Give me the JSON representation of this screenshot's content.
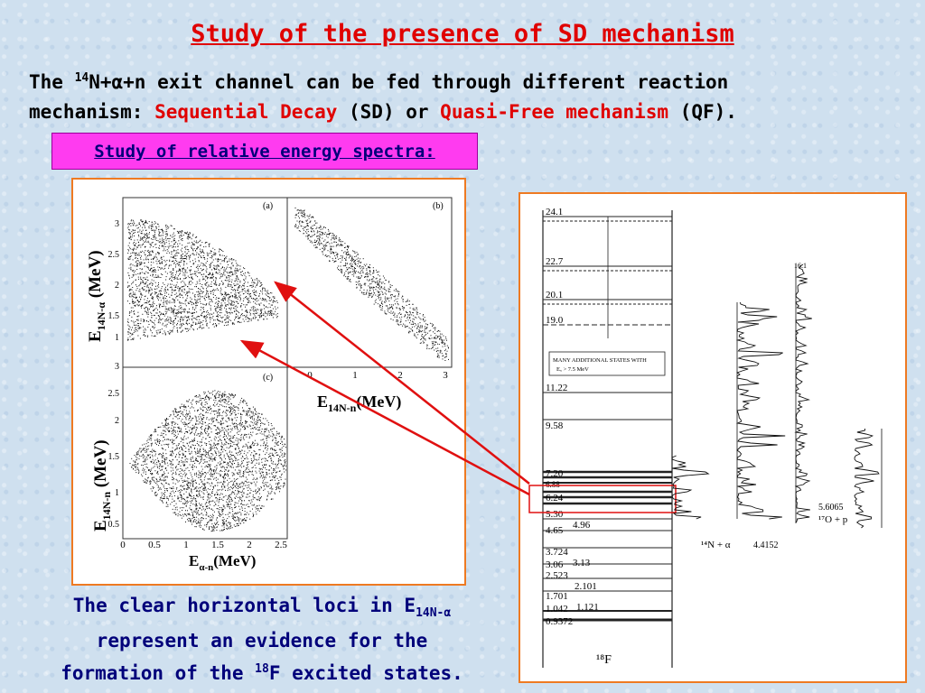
{
  "title": "Study of the presence of SD mechanism",
  "intro": {
    "line1_pre": "The ",
    "line1_sup": "14",
    "line1_post": "N+α+n exit channel can be fed through different reaction",
    "line2_pre": "mechanism: ",
    "sd": "Sequential Decay",
    "sd_abbr": " (SD) ",
    "or": "or ",
    "qf": "Quasi-Free mechanism",
    "qf_abbr": " (QF)."
  },
  "subtitle_box": "Study of relative energy spectra:",
  "plots": {
    "panel_a": "(a)",
    "panel_b": "(b)",
    "panel_c": "(c)",
    "y_label_top_main": "E",
    "y_label_top_sub": "14N-α",
    "y_label_top_unit": " (MeV)",
    "y_label_bottom_main": "E",
    "y_label_bottom_sub": "14N-n",
    "y_label_bottom_unit": " (MeV)",
    "x_label_b_main": "E",
    "x_label_b_sub": "14N-n",
    "x_label_b_unit": "(MeV)",
    "x_label_c_main": "E",
    "x_label_c_sub": "α-n",
    "x_label_c_unit": "(MeV)",
    "y_ticks_a": [
      "3",
      "2.5",
      "2",
      "1.5",
      "1"
    ],
    "x_ticks_b": [
      "0",
      "1",
      "2",
      "3"
    ],
    "y_ticks_c": [
      "3",
      "2.5",
      "2",
      "1.5",
      "1",
      "0.5"
    ],
    "x_ticks_c": [
      "0",
      "0.5",
      "1",
      "1.5",
      "2",
      "2.5"
    ]
  },
  "level_scheme": {
    "levels": [
      "24.1",
      "22.7",
      "20.1",
      "19.0",
      "11.22",
      "9.58",
      "7.20",
      "6.88",
      "6.24",
      "5.30",
      "4.65",
      "4.96",
      "3.724",
      "3.06",
      "3.13",
      "2.523",
      "2.101",
      "1.701",
      "1.042",
      "1.121",
      "0.9372"
    ],
    "box_text_1": "MANY ADDITIONAL STATES WITH",
    "box_text_2": "Eₓ > 7.5 MeV",
    "thresholds": [
      "16.1",
      "5.6065",
      "4.4152"
    ],
    "channel_alpha": "¹⁴N + α",
    "channel_p": "¹⁷O + p",
    "nucleus": "¹⁸F"
  },
  "bottom_text": {
    "line1_pre": "The clear horizontal loci in E",
    "line1_sub": "14N-α",
    "line2": "represent an evidence for the",
    "line3_pre": "formation of the ",
    "line3_sup": "18",
    "line3_post": "F excited states."
  },
  "colors": {
    "title_red": "#e00000",
    "subtitle_magenta": "#ff3bf0",
    "frame_orange": "#ee7a22",
    "text_navy": "#00007a",
    "arrow_red": "#e01010"
  }
}
